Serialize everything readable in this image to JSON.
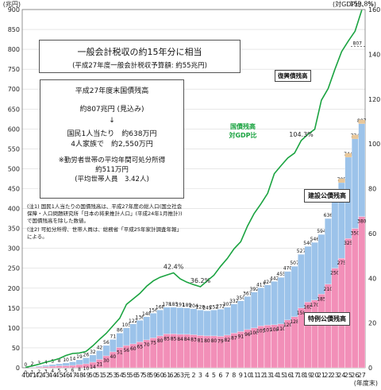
{
  "chart_data": {
    "type": "bar",
    "left_axis_unit": "(兆円)",
    "right_axis_unit": "(対GDP比、%)",
    "x_unit": "(年度末)",
    "left_ylim": [
      0,
      900
    ],
    "left_yticks": [
      0,
      50,
      100,
      150,
      200,
      250,
      300,
      350,
      400,
      450,
      500,
      550,
      600,
      650,
      700,
      750,
      800,
      850,
      900
    ],
    "right_ylim": [
      0,
      160
    ],
    "right_yticks": [
      0,
      20,
      40,
      60,
      80,
      100,
      120,
      140,
      160
    ],
    "categories": [
      "40",
      "41",
      "42",
      "43",
      "44",
      "45",
      "46",
      "47",
      "48",
      "49",
      "50",
      "51",
      "52",
      "53",
      "54",
      "55",
      "56",
      "57",
      "58",
      "59",
      "60",
      "61",
      "62",
      "63",
      "元",
      "2",
      "3",
      "4",
      "5",
      "6",
      "7",
      "8",
      "9",
      "10",
      "11",
      "12",
      "13",
      "14",
      "15",
      "16",
      "17",
      "18",
      "19",
      "20",
      "21",
      "22",
      "23",
      "24",
      "25",
      "26",
      "27"
    ],
    "series": [
      {
        "name": "建設公債残高",
        "values": [
          0,
          1,
          2,
          3,
          4,
          5,
          7,
          9,
          12,
          15,
          18,
          22,
          26,
          31,
          36,
          44,
          50,
          54,
          58,
          62,
          65,
          67,
          67,
          67,
          66,
          65,
          64,
          63,
          65,
          68,
          70,
          73,
          77,
          83,
          90,
          96,
          101,
          109,
          117,
          122,
          127,
          135,
          140,
          145,
          150,
          165,
          177,
          190,
          204,
          225,
          233
        ]
      },
      {
        "name": "特例公債残高",
        "values": [
          0,
          1,
          2,
          3,
          4,
          5,
          5,
          6,
          8,
          10,
          14,
          21,
          30,
          40,
          51,
          56,
          60,
          65,
          70,
          75,
          80,
          85,
          85,
          84,
          84,
          83,
          81,
          80,
          80,
          79,
          82,
          87,
          91,
          96,
          100,
          105,
          107,
          108,
          110,
          120,
          128,
          150,
          165,
          170,
          185,
          210,
          250,
          275,
          325,
          350,
          380
        ]
      }
    ],
    "total_labels": [
      "0",
      "2",
      "3",
      "4",
      "5",
      "8",
      "10",
      "14",
      "19",
      "26",
      "32",
      "45",
      "56",
      "71",
      "86",
      "105",
      "122",
      "136",
      "148",
      "159",
      "168",
      "178",
      "185",
      "188",
      "189",
      "193",
      "196",
      "199",
      "206",
      "221",
      "244",
      "272",
      "306",
      "332",
      "350",
      "365",
      "375",
      "385",
      "396",
      "413",
      "424",
      "462",
      "485",
      "507",
      "527",
      "545",
      "574",
      "596",
      "619",
      "647",
      "667"
    ],
    "total_label_series": [
      "0",
      "2",
      "3",
      "4",
      "5",
      "8",
      "10",
      "14",
      "19",
      "26",
      "32",
      "42",
      "56",
      "71",
      "86",
      "105",
      "122",
      "136",
      "148",
      "156",
      "168",
      "178",
      "185",
      "191",
      "189",
      "204",
      "228",
      "245",
      "252",
      "272",
      "307",
      "332",
      "350",
      "367",
      "392",
      "413",
      "424",
      "442",
      "455",
      "470",
      "507",
      "527",
      "540",
      "546",
      "594",
      "636",
      "670",
      "705",
      "744",
      "774",
      "807"
    ],
    "debt_gdp_ratio": {
      "name": "国債残高対GDP比",
      "values": [
        0.2,
        0.8,
        1.6,
        2.5,
        3.2,
        4.1,
        5.5,
        6.4,
        6.6,
        7.3,
        9.8,
        12.7,
        15.4,
        18.8,
        22.1,
        28.3,
        30.8,
        33.2,
        36.4,
        38.8,
        40.4,
        41.4,
        42.4,
        39.7,
        38.2,
        37.1,
        36.2,
        38.8,
        41.3,
        45.3,
        48.8,
        53.1,
        56.3,
        63.3,
        68.9,
        73.2,
        77.9,
        86.7,
        90.3,
        93.7,
        95.9,
        101.5,
        104.3,
        106.5,
        119.5,
        124.7,
        133.3,
        141.2,
        145.9,
        150.3,
        159.8
      ],
      "annotations": [
        {
          "label": "42.4%",
          "x": "62"
        },
        {
          "label": "36.2%",
          "x": "3"
        },
        {
          "label": "104.3%",
          "x": "18"
        },
        {
          "label": "159.8%",
          "x": "27"
        }
      ]
    },
    "annotation_top_values": [
      "751",
      "779",
      "807",
      "766",
      "705"
    ]
  },
  "texts": {
    "headline": "一般会計税収の約15年分に相当",
    "subhead": "(平成27年度一般会計税収予算額: 約55兆円)",
    "summary_title": "平成27年度末国債残高",
    "summary_amount": "約807兆円 (見込み)",
    "summary_arrow": "↓",
    "summary_per_capita": "国民1人当たり　約638万円",
    "summary_family": "4人家族で　約2,550万円",
    "summary_income_note": "※勤労者世帯の平均年間可処分所得",
    "summary_income_value": "約511万円",
    "summary_household": "(平均世帯人員　3.42人)",
    "note1": "(注1) 国民1人当たりの国債残高は、平成27年度の総人口(国立社会保障・人口問題研究所「日本の将来推計人口」(平成24年1月推計))で国債残高を除した数値。",
    "note2": "(注2) 可処分所得、世帯人員は、総務省「平成25年家計調査年報」による。",
    "label_recovery": "復興債残高",
    "label_ratio": "国債残高\n対GDP比",
    "label_construction": "建設公債残高",
    "label_special": "特例公債残高",
    "label_807": "807"
  },
  "colors": {
    "construction": "#9cc3ea",
    "special": "#f28fb8",
    "recovery": "#e8c79a",
    "line": "#1aa340",
    "grid": "#d9d9d9"
  }
}
